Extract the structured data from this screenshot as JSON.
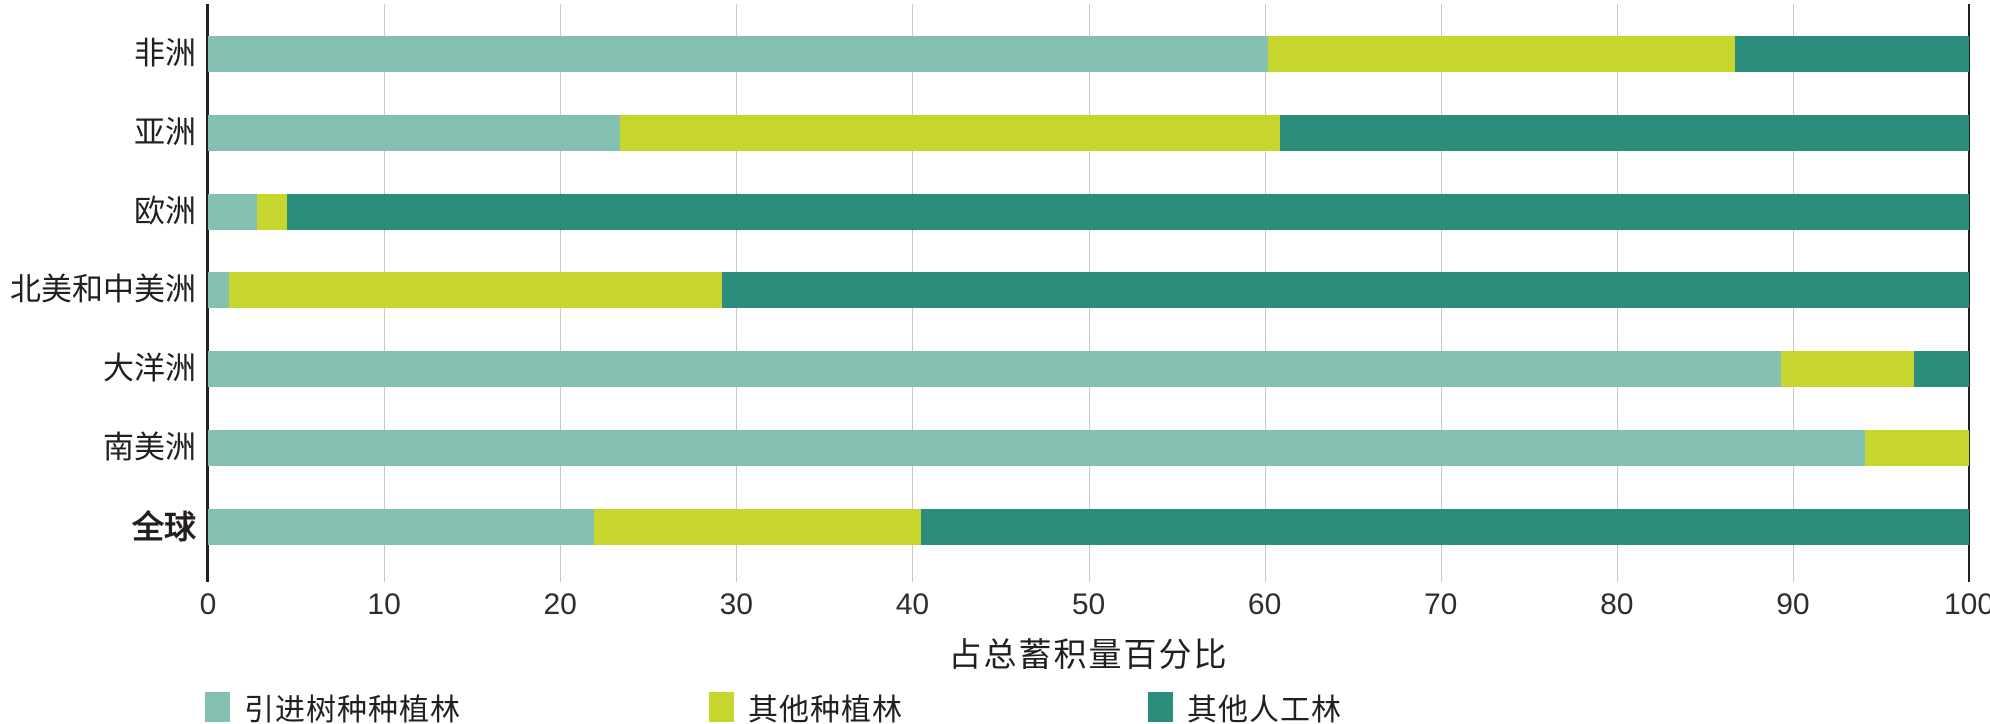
{
  "chart_data": {
    "type": "bar",
    "orientation": "horizontal",
    "stacked": true,
    "title": "",
    "xlabel": "占总蓄积量百分比",
    "ylabel": "",
    "xlim": [
      0,
      100
    ],
    "xticks": [
      0,
      10,
      20,
      30,
      40,
      50,
      60,
      70,
      80,
      90,
      100
    ],
    "grid": true,
    "legend_position": "bottom",
    "categories": [
      "非洲",
      "亚洲",
      "欧洲",
      "北美和中美洲",
      "大洋洲",
      "南美洲",
      "全球"
    ],
    "emphasized_category": "全球",
    "series": [
      {
        "name": "引进树种种植林",
        "color": "#83c0b1",
        "values": [
          60.2,
          23.4,
          2.8,
          1.2,
          89.3,
          94.1,
          21.9
        ]
      },
      {
        "name": "其他种植林",
        "color": "#c7d62e",
        "values": [
          26.5,
          37.5,
          1.7,
          28.0,
          7.6,
          5.9,
          18.6
        ]
      },
      {
        "name": "其他人工林",
        "color": "#2b8d7b",
        "values": [
          13.3,
          39.1,
          95.5,
          70.8,
          3.1,
          0,
          59.5
        ]
      }
    ]
  },
  "style": {
    "gridline_color": "#c9c9c9",
    "axis_color": "#231f20",
    "text_color": "#231f20"
  }
}
